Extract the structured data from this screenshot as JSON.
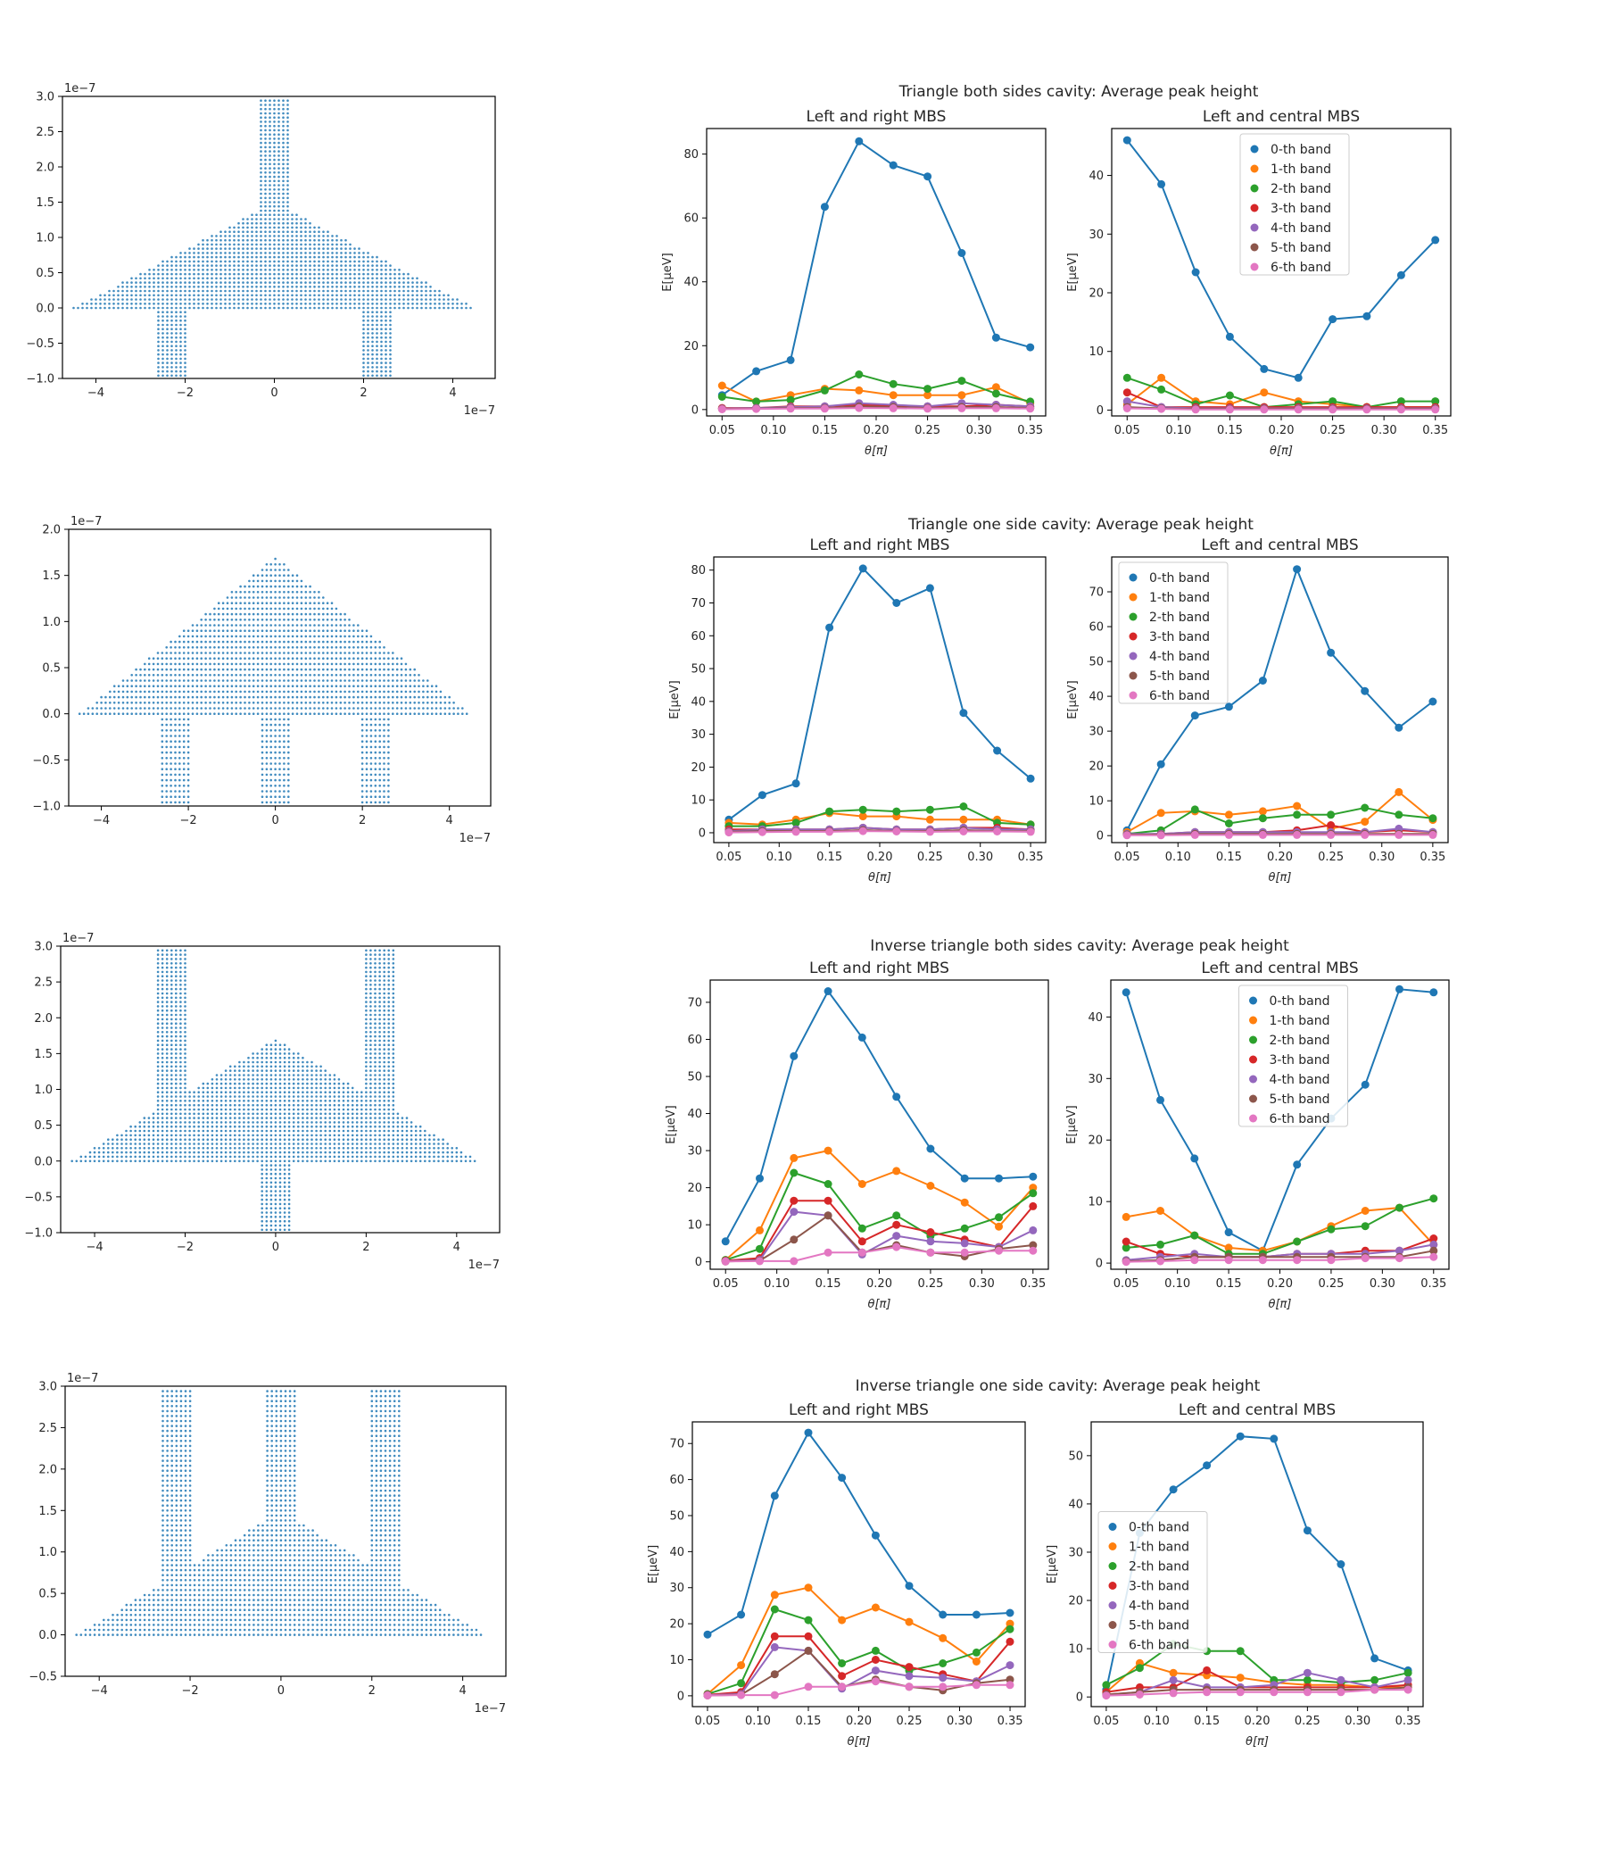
{
  "colors": [
    "#1f77b4",
    "#ff7f0e",
    "#2ca02c",
    "#d62728",
    "#9467bd",
    "#8c564b",
    "#e377c2"
  ],
  "band_names": [
    "0-th band",
    "1-th band",
    "2-th band",
    "3-th band",
    "4-th band",
    "5-th band",
    "6-th band"
  ],
  "theta": [
    0.05,
    0.0833,
    0.1167,
    0.15,
    0.1833,
    0.2167,
    0.25,
    0.2833,
    0.3167,
    0.35
  ],
  "rows": [
    {
      "title": "Triangle both sides cavity: Average peak height",
      "geometry": {
        "type": "scatter",
        "ylim": [
          -1.0,
          3.0
        ],
        "yticks": [
          "3.0",
          "2.5",
          "2.0",
          "1.5",
          "1.0",
          "0.5",
          "0.0",
          "−0.5",
          "−1.0"
        ],
        "xticks": [
          "−4",
          "−2",
          "0",
          "2",
          "4"
        ],
        "xscale_label": "1e−7",
        "yscale_label": "1e−7",
        "triangle": {
          "base_half": 4.5,
          "apex": 1.5
        },
        "stripes": [
          {
            "x0": -0.35,
            "x1": 0.35,
            "y0": 0.0,
            "y1": 3.0
          },
          {
            "x0": -2.7,
            "x1": -2.0,
            "y0": -1.0,
            "y1": 0.0
          },
          {
            "x0": 2.0,
            "x1": 2.7,
            "y0": -1.0,
            "y1": 0.0
          }
        ]
      },
      "left": {
        "type": "line",
        "title": "Left and right MBS",
        "xlabel": "θ[π]",
        "ylabel": "E[μeV]",
        "yticks": [
          0,
          20,
          40,
          60,
          80
        ],
        "ylim": [
          -2,
          88
        ],
        "series": [
          [
            4.5,
            12,
            15.5,
            63.5,
            84,
            76.5,
            73,
            49,
            22.5,
            19.5
          ],
          [
            7.5,
            2.5,
            4.5,
            6.5,
            6,
            4.5,
            4.5,
            4.5,
            7,
            2
          ],
          [
            4,
            2.5,
            3,
            6,
            11,
            8,
            6.5,
            9,
            5,
            2.5
          ],
          [
            0.5,
            0.5,
            1,
            1,
            1.5,
            1,
            1,
            1,
            1.5,
            1
          ],
          [
            0.3,
            0.5,
            0.8,
            1,
            2,
            1.5,
            1,
            2,
            1.5,
            1
          ],
          [
            0.2,
            0.3,
            0.5,
            0.5,
            1,
            0.8,
            0.5,
            0.8,
            0.8,
            0.5
          ],
          [
            0.1,
            0.2,
            0.3,
            0.3,
            0.5,
            0.4,
            0.3,
            0.4,
            0.4,
            0.3
          ]
        ]
      },
      "right": {
        "type": "line",
        "title": "Left and central MBS",
        "xlabel": "θ[π]",
        "ylabel": "E[μeV]",
        "yticks": [
          0,
          10,
          20,
          30,
          40
        ],
        "ylim": [
          -1,
          48
        ],
        "legend": "top-center",
        "series": [
          [
            46,
            38.5,
            23.5,
            12.5,
            7,
            5.5,
            15.5,
            16,
            23,
            29
          ],
          [
            1,
            5.5,
            1.5,
            1,
            3,
            1.5,
            1,
            0.5,
            0.5,
            0.5
          ],
          [
            5.5,
            3.5,
            1,
            2.5,
            0.5,
            1,
            1.5,
            0.5,
            1.5,
            1.5
          ],
          [
            3,
            0.5,
            0.5,
            0.5,
            0.5,
            0.5,
            0.5,
            0.5,
            0.5,
            0.5
          ],
          [
            1.5,
            0.5,
            0.3,
            0.3,
            0.3,
            0.3,
            0.3,
            0.3,
            0.3,
            0.3
          ],
          [
            0.5,
            0.3,
            0.2,
            0.2,
            0.2,
            0.2,
            0.2,
            0.2,
            0.2,
            0.2
          ],
          [
            0.3,
            0.2,
            0.1,
            0.1,
            0.1,
            0.1,
            0.1,
            0.1,
            0.1,
            0.1
          ]
        ]
      }
    },
    {
      "title": "Triangle one side cavity: Average peak height",
      "geometry": {
        "type": "scatter",
        "ylim": [
          -1.0,
          2.0
        ],
        "yticks": [
          "2.0",
          "1.5",
          "1.0",
          "0.5",
          "0.0",
          "−0.5",
          "−1.0"
        ],
        "xticks": [
          "−4",
          "−2",
          "0",
          "2",
          "4"
        ],
        "xscale_label": "1e−7",
        "yscale_label": "1e−7",
        "triangle": {
          "base_half": 4.5,
          "apex": 1.7
        },
        "stripes": [
          {
            "x0": -2.7,
            "x1": -2.0,
            "y0": -1.0,
            "y1": 0.0
          },
          {
            "x0": -0.35,
            "x1": 0.35,
            "y0": -1.0,
            "y1": 0.0
          },
          {
            "x0": 2.0,
            "x1": 2.7,
            "y0": -1.0,
            "y1": 0.0
          }
        ]
      },
      "left": {
        "type": "line",
        "title": "Left and right MBS",
        "xlabel": "θ[π]",
        "ylabel": "E[μeV]",
        "yticks": [
          0,
          10,
          20,
          30,
          40,
          50,
          60,
          70,
          80
        ],
        "ylim": [
          -3,
          84
        ],
        "series": [
          [
            4,
            11.5,
            15,
            62.5,
            80.5,
            70,
            74.5,
            36.5,
            25,
            16.5
          ],
          [
            3,
            2.5,
            4,
            6,
            5,
            5,
            4,
            4,
            4,
            2.5
          ],
          [
            2,
            2,
            3,
            6.5,
            7,
            6.5,
            7,
            8,
            3,
            2.5
          ],
          [
            1,
            1,
            1,
            1,
            1.5,
            1,
            1,
            1.5,
            1.5,
            1
          ],
          [
            0.5,
            1,
            1,
            1,
            1.5,
            1,
            1,
            1.5,
            1,
            1
          ],
          [
            0.3,
            0.5,
            0.5,
            0.5,
            0.8,
            0.5,
            0.5,
            0.8,
            0.5,
            0.5
          ],
          [
            0.1,
            0.2,
            0.3,
            0.3,
            0.5,
            0.4,
            0.3,
            0.4,
            0.4,
            0.3
          ]
        ]
      },
      "right": {
        "type": "line",
        "title": "Left and central MBS",
        "xlabel": "θ[π]",
        "ylabel": "E[μeV]",
        "yticks": [
          0,
          10,
          20,
          30,
          40,
          50,
          60,
          70
        ],
        "ylim": [
          -2,
          80
        ],
        "legend": "top-left",
        "series": [
          [
            1.5,
            20.5,
            34.5,
            37,
            44.5,
            76.5,
            52.5,
            41.5,
            31,
            38.5
          ],
          [
            1,
            6.5,
            7,
            6,
            7,
            8.5,
            2,
            4,
            12.5,
            4.5
          ],
          [
            0.5,
            1.5,
            7.5,
            3.5,
            5,
            6,
            6,
            8,
            6,
            5
          ],
          [
            0.3,
            0.5,
            1,
            1,
            1,
            1.5,
            3,
            1,
            1.5,
            1
          ],
          [
            0.5,
            0.5,
            1,
            1,
            1,
            1,
            1,
            1,
            2,
            1
          ],
          [
            0.3,
            0.3,
            0.5,
            0.5,
            0.5,
            0.5,
            0.5,
            0.5,
            0.5,
            0.5
          ],
          [
            0.1,
            0.1,
            0.2,
            0.2,
            0.2,
            0.2,
            0.2,
            0.2,
            0.2,
            0.2
          ]
        ]
      }
    },
    {
      "title": "Inverse triangle both sides cavity: Average peak height",
      "geometry": {
        "type": "scatter",
        "ylim": [
          -1.0,
          3.0
        ],
        "yticks": [
          "3.0",
          "2.5",
          "2.0",
          "1.5",
          "1.0",
          "0.5",
          "0.0",
          "−0.5",
          "−1.0"
        ],
        "xticks": [
          "−4",
          "−2",
          "0",
          "2",
          "4"
        ],
        "xscale_label": "1e−7",
        "yscale_label": "1e−7",
        "triangle": {
          "base_half": 4.5,
          "apex": 1.7
        },
        "stripes": [
          {
            "x0": -2.7,
            "x1": -2.0,
            "y0": 0.0,
            "y1": 3.0
          },
          {
            "x0": 2.0,
            "x1": 2.7,
            "y0": 0.0,
            "y1": 3.0
          },
          {
            "x0": -0.35,
            "x1": 0.35,
            "y0": -1.0,
            "y1": 0.0
          }
        ]
      },
      "left": {
        "type": "line",
        "title": "Left and right MBS",
        "xlabel": "θ[π]",
        "ylabel": "E[μeV]",
        "yticks": [
          0,
          10,
          20,
          30,
          40,
          50,
          60,
          70
        ],
        "ylim": [
          -2,
          76
        ],
        "series": [
          [
            5.5,
            22.5,
            55.5,
            73,
            60.5,
            44.5,
            30.5,
            22.5,
            22.5,
            23
          ],
          [
            0.5,
            8.5,
            28,
            30,
            21,
            24.5,
            20.5,
            16,
            9.5,
            20
          ],
          [
            0.5,
            3.5,
            24,
            21,
            9,
            12.5,
            7,
            9,
            12,
            18.5
          ],
          [
            0.3,
            1,
            16.5,
            16.5,
            5.5,
            10,
            8,
            6,
            4,
            15
          ],
          [
            0.2,
            0.5,
            13.5,
            12.5,
            2,
            7,
            5.5,
            5,
            4,
            8.5
          ],
          [
            0.1,
            0.3,
            6,
            12.5,
            2.5,
            4.5,
            2.5,
            1.5,
            3.5,
            4.5
          ],
          [
            0.1,
            0.2,
            0.2,
            2.5,
            2.5,
            4,
            2.5,
            2.5,
            3,
            3
          ]
        ]
      },
      "right": {
        "type": "line",
        "title": "Left and central MBS",
        "xlabel": "θ[π]",
        "ylabel": "E[μeV]",
        "yticks": [
          0,
          10,
          20,
          30,
          40
        ],
        "ylim": [
          -1,
          46
        ],
        "legend": "top-center",
        "series": [
          [
            44,
            26.5,
            17,
            5,
            2,
            16,
            23.5,
            29,
            44.5,
            44
          ],
          [
            7.5,
            8.5,
            4.5,
            2.5,
            2,
            3.5,
            6,
            8.5,
            9,
            3
          ],
          [
            2.5,
            3,
            4.5,
            1.5,
            1.5,
            3.5,
            5.5,
            6,
            9,
            10.5
          ],
          [
            3.5,
            1.5,
            1,
            1,
            1,
            1.5,
            1.5,
            2,
            2,
            4
          ],
          [
            0.5,
            1,
            1.5,
            1,
            1,
            1.5,
            1.5,
            1.5,
            2,
            3
          ],
          [
            0.3,
            0.5,
            1,
            1,
            1,
            1,
            1,
            1,
            1,
            2
          ],
          [
            0.2,
            0.3,
            0.5,
            0.5,
            0.5,
            0.5,
            0.5,
            0.8,
            0.8,
            1
          ]
        ]
      }
    },
    {
      "title": "Inverse triangle one side cavity: Average peak height",
      "geometry": {
        "type": "scatter",
        "ylim": [
          -0.5,
          3.0
        ],
        "yticks": [
          "3.0",
          "2.5",
          "2.0",
          "1.5",
          "1.0",
          "0.5",
          "0.0",
          "−0.5"
        ],
        "xticks": [
          "−4",
          "−2",
          "0",
          "2",
          "4"
        ],
        "xscale_label": "1e−7",
        "yscale_label": "1e−7",
        "triangle": {
          "base_half": 4.5,
          "apex": 1.5
        },
        "stripes": [
          {
            "x0": -2.7,
            "x1": -2.0,
            "y0": 0.0,
            "y1": 3.0
          },
          {
            "x0": -0.35,
            "x1": 0.35,
            "y0": 0.0,
            "y1": 3.0
          },
          {
            "x0": 2.0,
            "x1": 2.7,
            "y0": 0.0,
            "y1": 3.0
          }
        ]
      },
      "left": {
        "type": "line",
        "title": "Left and right MBS",
        "xlabel": "θ[π]",
        "ylabel": "E[μeV]",
        "yticks": [
          0,
          10,
          20,
          30,
          40,
          50,
          60,
          70
        ],
        "ylim": [
          -3,
          76
        ],
        "series": [
          [
            17,
            22.5,
            55.5,
            73,
            60.5,
            44.5,
            30.5,
            22.5,
            22.5,
            23
          ],
          [
            0.5,
            8.5,
            28,
            30,
            21,
            24.5,
            20.5,
            16,
            9.5,
            20
          ],
          [
            0.5,
            3.5,
            24,
            21,
            9,
            12.5,
            7,
            9,
            12,
            18.5
          ],
          [
            0.3,
            1,
            16.5,
            16.5,
            5.5,
            10,
            8,
            6,
            4,
            15
          ],
          [
            0.2,
            0.5,
            13.5,
            12.5,
            2,
            7,
            5.5,
            5,
            4,
            8.5
          ],
          [
            0.1,
            0.3,
            6,
            12.5,
            2.5,
            4.5,
            2.5,
            1.5,
            3.5,
            4.5
          ],
          [
            0.1,
            0.2,
            0.2,
            2.5,
            2.5,
            4,
            2.5,
            2.5,
            3,
            3
          ]
        ]
      },
      "right": {
        "type": "line",
        "title": "Left and central MBS",
        "xlabel": "θ[π]",
        "ylabel": "E[μeV]",
        "yticks": [
          0,
          10,
          20,
          30,
          40,
          50
        ],
        "ylim": [
          -2,
          57
        ],
        "legend": "center-left",
        "series": [
          [
            1.5,
            34,
            43,
            48,
            54,
            53.5,
            34.5,
            27.5,
            8,
            5.5
          ],
          [
            1,
            7,
            5,
            4.5,
            4,
            3,
            2.5,
            2.5,
            2,
            2
          ],
          [
            2.5,
            6,
            11,
            9.5,
            9.5,
            3.5,
            3.5,
            3,
            3.5,
            5
          ],
          [
            1,
            2,
            2,
            5.5,
            2,
            2,
            2,
            2,
            2,
            2.5
          ],
          [
            0.5,
            1,
            3.5,
            2,
            2,
            2.5,
            5,
            3.5,
            2,
            3.5
          ],
          [
            0.5,
            1,
            1.5,
            1.5,
            1.5,
            1.5,
            1.5,
            1.5,
            1.5,
            2
          ],
          [
            0.3,
            0.5,
            0.8,
            1,
            1,
            1,
            1,
            1,
            1.5,
            1.5
          ]
        ]
      }
    }
  ]
}
